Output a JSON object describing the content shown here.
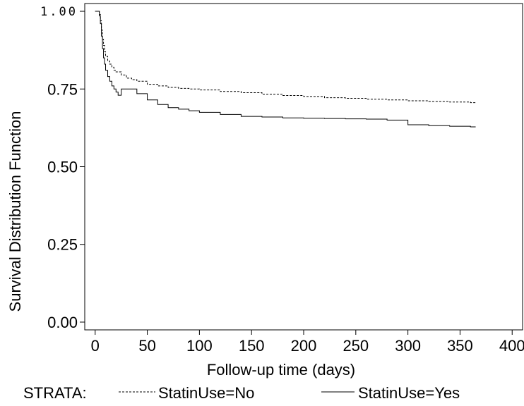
{
  "chart_data": {
    "type": "line",
    "title": "",
    "xlabel": "Follow-up time (days)",
    "ylabel": "Survival Distribution Function",
    "xlim": [
      -10,
      410
    ],
    "ylim": [
      -0.025,
      1.025
    ],
    "xticks": [
      0,
      50,
      100,
      150,
      200,
      250,
      300,
      350,
      400
    ],
    "xtick_labels": [
      "0",
      "50",
      "100",
      "150",
      "200",
      "250",
      "300",
      "350",
      "400"
    ],
    "yticks": [
      0,
      0.25,
      0.5,
      0.75,
      1.0
    ],
    "ytick_labels": [
      "0.00",
      "0.25",
      "0.50",
      "0.75",
      "1.00"
    ],
    "grid": false,
    "step": true,
    "legend": {
      "position": "bottom",
      "title": "STRATA:"
    },
    "series": [
      {
        "name": "StatinUse=No",
        "style": "dashed",
        "color": "#000000",
        "x": [
          0,
          2,
          4,
          5,
          6,
          7,
          8,
          9,
          10,
          12,
          14,
          16,
          18,
          20,
          25,
          30,
          35,
          40,
          50,
          60,
          70,
          80,
          90,
          100,
          120,
          140,
          160,
          180,
          200,
          220,
          240,
          260,
          280,
          300,
          320,
          340,
          360,
          365
        ],
        "y": [
          1.0,
          1.0,
          0.99,
          0.97,
          0.94,
          0.91,
          0.89,
          0.87,
          0.855,
          0.84,
          0.83,
          0.82,
          0.81,
          0.805,
          0.795,
          0.785,
          0.78,
          0.775,
          0.765,
          0.76,
          0.755,
          0.752,
          0.75,
          0.747,
          0.742,
          0.738,
          0.733,
          0.729,
          0.726,
          0.722,
          0.72,
          0.717,
          0.715,
          0.712,
          0.71,
          0.708,
          0.706,
          0.706
        ]
      },
      {
        "name": "StatinUse=Yes",
        "style": "solid",
        "color": "#000000",
        "x": [
          0,
          2,
          4,
          5,
          6,
          7,
          8,
          9,
          10,
          12,
          14,
          16,
          18,
          20,
          22,
          25,
          30,
          40,
          50,
          60,
          70,
          80,
          90,
          100,
          120,
          140,
          160,
          180,
          200,
          220,
          240,
          260,
          280,
          300,
          320,
          340,
          360,
          365
        ],
        "y": [
          1.0,
          1.0,
          0.985,
          0.96,
          0.92,
          0.88,
          0.85,
          0.83,
          0.81,
          0.79,
          0.775,
          0.76,
          0.75,
          0.74,
          0.73,
          0.75,
          0.75,
          0.735,
          0.715,
          0.7,
          0.69,
          0.685,
          0.68,
          0.675,
          0.668,
          0.662,
          0.66,
          0.657,
          0.656,
          0.655,
          0.654,
          0.653,
          0.65,
          0.635,
          0.632,
          0.63,
          0.628,
          0.628
        ]
      }
    ]
  }
}
